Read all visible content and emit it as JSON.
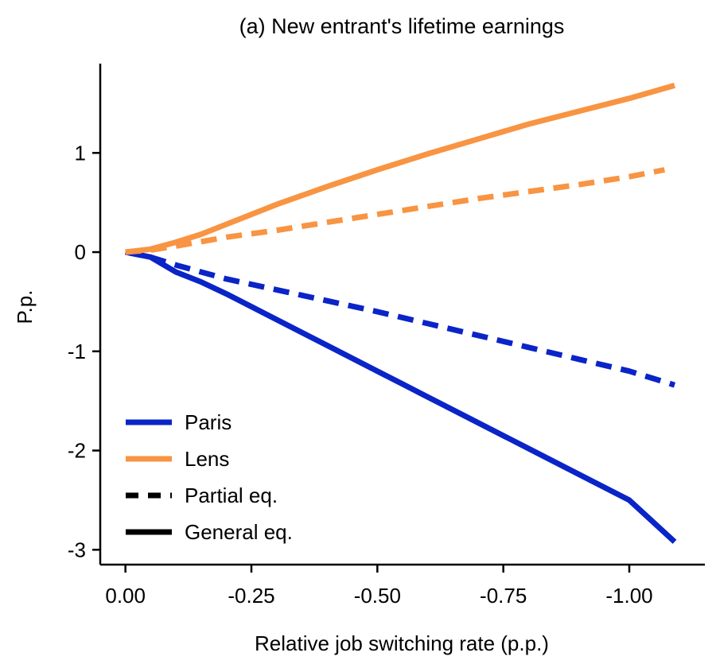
{
  "chart_data": {
    "type": "line",
    "title": "(a) New entrant's lifetime earnings",
    "xlabel": "Relative job switching rate (p.p.)",
    "ylabel": "P.p.",
    "xlim": [
      0.05,
      -1.15
    ],
    "ylim": [
      -3.15,
      1.9
    ],
    "xticks": [
      0.0,
      -0.25,
      -0.5,
      -0.75,
      -1.0
    ],
    "xtick_labels": [
      "0.00",
      "-0.25",
      "-0.50",
      "-0.75",
      "-1.00"
    ],
    "yticks": [
      1,
      0,
      -1,
      -2,
      -3
    ],
    "ytick_labels": [
      "1",
      "0",
      "-1",
      "-2",
      "-3"
    ],
    "legend_position": "lower-left",
    "series": [
      {
        "name": "Paris (General eq.)",
        "color": "#0a24c8",
        "style": "solid",
        "x": [
          0.0,
          -0.05,
          -0.1,
          -0.15,
          -0.2,
          -0.25,
          -0.3,
          -0.4,
          -0.5,
          -0.6,
          -0.7,
          -0.8,
          -0.9,
          -1.0,
          -1.09
        ],
        "y": [
          0.0,
          -0.05,
          -0.2,
          -0.3,
          -0.42,
          -0.55,
          -0.68,
          -0.94,
          -1.2,
          -1.46,
          -1.72,
          -1.98,
          -2.24,
          -2.5,
          -2.92
        ]
      },
      {
        "name": "Paris (Partial eq.)",
        "color": "#0a24c8",
        "style": "dashed",
        "x": [
          0.0,
          -0.05,
          -0.1,
          -0.2,
          -0.3,
          -0.4,
          -0.5,
          -0.6,
          -0.7,
          -0.8,
          -0.9,
          -1.0,
          -1.09
        ],
        "y": [
          0.0,
          -0.05,
          -0.13,
          -0.27,
          -0.38,
          -0.49,
          -0.6,
          -0.72,
          -0.84,
          -0.96,
          -1.08,
          -1.2,
          -1.34
        ]
      },
      {
        "name": "Lens (General eq.)",
        "color": "#f89442",
        "style": "solid",
        "x": [
          0.0,
          -0.05,
          -0.1,
          -0.15,
          -0.2,
          -0.25,
          -0.3,
          -0.4,
          -0.5,
          -0.6,
          -0.7,
          -0.8,
          -0.9,
          -1.0,
          -1.09
        ],
        "y": [
          0.0,
          0.03,
          0.1,
          0.18,
          0.28,
          0.38,
          0.48,
          0.66,
          0.83,
          0.99,
          1.14,
          1.29,
          1.42,
          1.55,
          1.68
        ]
      },
      {
        "name": "Lens (Partial eq.)",
        "color": "#f89442",
        "style": "dashed",
        "x": [
          0.0,
          -0.05,
          -0.1,
          -0.2,
          -0.3,
          -0.4,
          -0.5,
          -0.6,
          -0.7,
          -0.8,
          -0.9,
          -1.0,
          -1.07
        ],
        "y": [
          0.0,
          0.02,
          0.06,
          0.15,
          0.22,
          0.3,
          0.38,
          0.46,
          0.54,
          0.61,
          0.68,
          0.76,
          0.83
        ]
      }
    ],
    "legend": [
      {
        "label": "Paris",
        "color": "#0a24c8",
        "style": "solid"
      },
      {
        "label": "Lens",
        "color": "#f89442",
        "style": "solid"
      },
      {
        "label": "Partial eq.",
        "color": "#000000",
        "style": "dashed"
      },
      {
        "label": "General eq.",
        "color": "#000000",
        "style": "solid"
      }
    ]
  }
}
